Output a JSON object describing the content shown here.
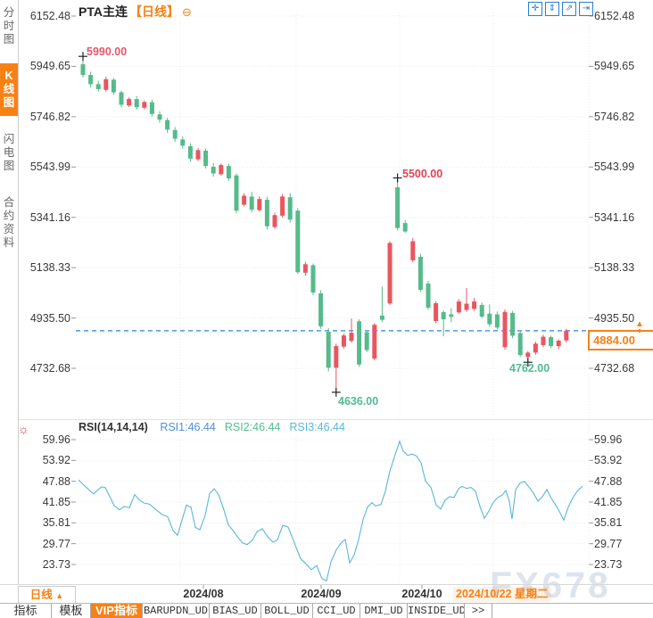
{
  "window": {
    "instrument": "PTA主连",
    "period_tag": "【日线】",
    "collapse_icon_glyph": "⊖"
  },
  "sidebar": {
    "tabs": [
      {
        "label": "分时图",
        "active": false
      },
      {
        "label": "K线图",
        "active": true
      },
      {
        "label": "闪电图",
        "active": false
      },
      {
        "label": "合约资料",
        "active": false
      }
    ],
    "active_bg": "#f78114"
  },
  "top_toolbar": {
    "icons": [
      {
        "name": "crosshair-move-icon",
        "glyph": "✛"
      },
      {
        "name": "y-axis-scale-icon",
        "glyph": "⇕"
      },
      {
        "name": "x-axis-scale-icon",
        "glyph": "⇗"
      },
      {
        "name": "go-to-latest-icon",
        "glyph": "⇥"
      }
    ],
    "color": "#2a7fd4"
  },
  "rsi_panel": {
    "settings_icon_glyph": "☼",
    "label": "RSI(14,14,14)",
    "readouts": [
      {
        "text": "RSI1:46.44",
        "color": "#4f8fdd"
      },
      {
        "text": "RSI2:46.44",
        "color": "#52bd8f"
      },
      {
        "text": "RSI3:46.44",
        "color": "#55b8e0"
      }
    ]
  },
  "x_axis": {
    "period_label": "日线",
    "period_arrow": "▲",
    "months": [
      "2024/08",
      "2024/09",
      "2024/10"
    ],
    "current_date": "2024/10/22 星期二",
    "accent": "#f78114"
  },
  "bottom_toolbar": {
    "items": [
      {
        "label": "指标",
        "active": false,
        "cn": true
      },
      {
        "label": "模板",
        "active": false,
        "cn": true
      },
      {
        "label": "VIP指标",
        "active": true,
        "cn": true
      },
      {
        "label": "BARUPDN_UD",
        "active": false,
        "cn": false
      },
      {
        "label": "BIAS_UD",
        "active": false,
        "cn": false
      },
      {
        "label": "BOLL_UD",
        "active": false,
        "cn": false
      },
      {
        "label": "CCI_UD",
        "active": false,
        "cn": false
      },
      {
        "label": "DMI_UD",
        "active": false,
        "cn": false
      },
      {
        "label": "INSIDE_UD",
        "active": false,
        "cn": false
      },
      {
        "label": ">>",
        "active": false,
        "cn": false
      }
    ]
  },
  "watermark": "FX678",
  "chart_data": [
    {
      "type": "candlestick",
      "title": "PTA主连 日线",
      "ylabel": "price",
      "ylim": [
        4636,
        6152.48
      ],
      "y_ticks": [
        "6152.48",
        "5949.65",
        "5746.82",
        "5543.99",
        "5341.16",
        "5138.33",
        "4935.50",
        "4732.68"
      ],
      "x_tick_labels": [
        "2024/08",
        "2024/09",
        "2024/10"
      ],
      "colors": {
        "up": "#e8565f",
        "down": "#56ba8b",
        "current_line": "#2a82e4"
      },
      "current_price": 4884.0,
      "current_price_label": "4884.00",
      "annotations": [
        {
          "text": "5990.00",
          "price": 5990,
          "color": "#e8566a"
        },
        {
          "text": "5500.00",
          "price": 5500,
          "color": "#e04353"
        },
        {
          "text": "4636.00",
          "price": 4636,
          "color": "#4fbc92"
        },
        {
          "text": "4762.00",
          "price": 4762,
          "color": "#4fbc92"
        }
      ],
      "ohlc": [
        [
          5958,
          5990,
          5905,
          5915
        ],
        [
          5915,
          5928,
          5865,
          5878
        ],
        [
          5878,
          5892,
          5848,
          5858
        ],
        [
          5855,
          5908,
          5848,
          5898
        ],
        [
          5896,
          5902,
          5835,
          5845
        ],
        [
          5845,
          5852,
          5785,
          5795
        ],
        [
          5792,
          5825,
          5786,
          5818
        ],
        [
          5818,
          5830,
          5775,
          5785
        ],
        [
          5783,
          5812,
          5776,
          5806
        ],
        [
          5805,
          5815,
          5748,
          5758
        ],
        [
          5756,
          5768,
          5722,
          5735
        ],
        [
          5733,
          5742,
          5682,
          5695
        ],
        [
          5693,
          5705,
          5645,
          5658
        ],
        [
          5655,
          5668,
          5618,
          5630
        ],
        [
          5628,
          5640,
          5565,
          5578
        ],
        [
          5575,
          5620,
          5568,
          5612
        ],
        [
          5610,
          5618,
          5538,
          5548
        ],
        [
          5545,
          5560,
          5505,
          5518
        ],
        [
          5515,
          5558,
          5508,
          5552
        ],
        [
          5548,
          5558,
          5488,
          5498
        ],
        [
          5510,
          5518,
          5358,
          5368
        ],
        [
          5392,
          5438,
          5385,
          5428
        ],
        [
          5425,
          5445,
          5362,
          5372
        ],
        [
          5370,
          5425,
          5365,
          5415
        ],
        [
          5412,
          5425,
          5292,
          5305
        ],
        [
          5302,
          5360,
          5295,
          5350
        ],
        [
          5348,
          5435,
          5340,
          5425
        ],
        [
          5422,
          5438,
          5320,
          5332
        ],
        [
          5368,
          5378,
          5112,
          5120
        ],
        [
          5118,
          5162,
          5105,
          5152
        ],
        [
          5148,
          5155,
          5028,
          5038
        ],
        [
          5035,
          5048,
          4892,
          4902
        ],
        [
          4880,
          4895,
          4720,
          4735
        ],
        [
          4735,
          4832,
          4636,
          4822
        ],
        [
          4820,
          4872,
          4812,
          4865
        ],
        [
          4843,
          4933,
          4836,
          4876
        ],
        [
          4922,
          4930,
          4738,
          4748
        ],
        [
          4878,
          4886,
          4798,
          4806
        ],
        [
          4772,
          4915,
          4765,
          4908
        ],
        [
          4945,
          5062,
          4918,
          4928
        ],
        [
          4994,
          5245,
          4988,
          5238
        ],
        [
          5462,
          5500,
          5288,
          5298
        ],
        [
          5318,
          5330,
          5278,
          5284
        ],
        [
          5168,
          5258,
          5160,
          5245
        ],
        [
          5182,
          5195,
          5040,
          5049
        ],
        [
          5074,
          5085,
          4968,
          4977
        ],
        [
          4923,
          5002,
          4915,
          4995
        ],
        [
          4959,
          4966,
          4862,
          4930
        ],
        [
          4950,
          4975,
          4918,
          4940
        ],
        [
          4958,
          5012,
          4952,
          5002
        ],
        [
          4968,
          5056,
          4960,
          4993
        ],
        [
          4972,
          5016,
          4964,
          5002
        ],
        [
          4988,
          4998,
          4934,
          4941
        ],
        [
          4953,
          4990,
          4900,
          4910
        ],
        [
          4950,
          4962,
          4890,
          4897
        ],
        [
          4818,
          4970,
          4808,
          4960
        ],
        [
          4956,
          4964,
          4854,
          4864
        ],
        [
          4875,
          4885,
          4778,
          4786
        ],
        [
          4778,
          4802,
          4762,
          4796
        ],
        [
          4796,
          4840,
          4788,
          4832
        ],
        [
          4826,
          4868,
          4818,
          4860
        ],
        [
          4858,
          4865,
          4814,
          4822
        ],
        [
          4822,
          4850,
          4810,
          4844
        ],
        [
          4845,
          4892,
          4836,
          4884
        ]
      ]
    },
    {
      "type": "line",
      "title": "RSI(14,14,14)",
      "series": [
        {
          "name": "RSI1",
          "value": 46.44
        },
        {
          "name": "RSI2",
          "value": 46.44
        },
        {
          "name": "RSI3",
          "value": 46.44
        }
      ],
      "y_ticks": [
        "59.96",
        "53.92",
        "47.88",
        "41.85",
        "35.81",
        "29.77",
        "23.73"
      ],
      "line_color": "#5ab6dc",
      "points": [
        [
          88,
          48.3
        ],
        [
          93,
          47.0
        ],
        [
          98,
          45.8
        ],
        [
          105,
          44.2
        ],
        [
          110,
          45.5
        ],
        [
          114,
          46.3
        ],
        [
          118,
          46.0
        ],
        [
          123,
          43.5
        ],
        [
          128,
          40.8
        ],
        [
          134,
          39.6
        ],
        [
          139,
          40.6
        ],
        [
          145,
          40.2
        ],
        [
          151,
          44.0
        ],
        [
          156,
          42.5
        ],
        [
          161,
          41.6
        ],
        [
          168,
          41.2
        ],
        [
          175,
          39.6
        ],
        [
          182,
          38.2
        ],
        [
          188,
          37.6
        ],
        [
          194,
          33.6
        ],
        [
          199,
          32.2
        ],
        [
          204,
          36.6
        ],
        [
          209,
          41.0
        ],
        [
          214,
          40.4
        ],
        [
          219,
          34.5
        ],
        [
          224,
          33.8
        ],
        [
          230,
          38.0
        ],
        [
          235,
          44.3
        ],
        [
          240,
          45.7
        ],
        [
          245,
          44.0
        ],
        [
          250,
          40.4
        ],
        [
          256,
          35.2
        ],
        [
          261,
          33.7
        ],
        [
          267,
          31.5
        ],
        [
          272,
          30.0
        ],
        [
          277,
          29.5
        ],
        [
          283,
          30.8
        ],
        [
          288,
          33.2
        ],
        [
          294,
          34.1
        ],
        [
          300,
          31.8
        ],
        [
          306,
          30.2
        ],
        [
          311,
          30.9
        ],
        [
          317,
          35.1
        ],
        [
          323,
          34.6
        ],
        [
          330,
          30.0
        ],
        [
          337,
          25.4
        ],
        [
          343,
          23.9
        ],
        [
          349,
          22.2
        ],
        [
          355,
          23.4
        ],
        [
          361,
          19.6
        ],
        [
          366,
          19.0
        ],
        [
          371,
          24.5
        ],
        [
          377,
          28.0
        ],
        [
          382,
          29.9
        ],
        [
          387,
          31.0
        ],
        [
          392,
          24.2
        ],
        [
          397,
          26.5
        ],
        [
          402,
          31.0
        ],
        [
          407,
          36.8
        ],
        [
          412,
          40.4
        ],
        [
          417,
          41.7
        ],
        [
          421,
          40.7
        ],
        [
          427,
          41.2
        ],
        [
          432,
          45.0
        ],
        [
          437,
          50.8
        ],
        [
          442,
          54.8
        ],
        [
          448,
          59.5
        ],
        [
          452,
          56.6
        ],
        [
          457,
          55.4
        ],
        [
          462,
          55.8
        ],
        [
          467,
          55.2
        ],
        [
          472,
          53.2
        ],
        [
          477,
          47.9
        ],
        [
          483,
          46.1
        ],
        [
          489,
          41.0
        ],
        [
          494,
          39.8
        ],
        [
          499,
          42.4
        ],
        [
          504,
          43.4
        ],
        [
          509,
          43.2
        ],
        [
          514,
          45.7
        ],
        [
          518,
          46.4
        ],
        [
          523,
          45.8
        ],
        [
          528,
          46.1
        ],
        [
          533,
          45.0
        ],
        [
          538,
          40.6
        ],
        [
          543,
          37.1
        ],
        [
          548,
          39.2
        ],
        [
          553,
          41.8
        ],
        [
          558,
          43.2
        ],
        [
          563,
          43.9
        ],
        [
          567,
          45.2
        ],
        [
          571,
          42.0
        ],
        [
          574,
          36.9
        ],
        [
          578,
          45.4
        ],
        [
          583,
          47.4
        ],
        [
          588,
          47.8
        ],
        [
          593,
          46.2
        ],
        [
          598,
          44.4
        ],
        [
          603,
          42.1
        ],
        [
          608,
          43.4
        ],
        [
          613,
          45.5
        ],
        [
          618,
          42.9
        ],
        [
          623,
          40.9
        ],
        [
          628,
          38.7
        ],
        [
          632,
          36.6
        ],
        [
          637,
          40.4
        ],
        [
          642,
          43.0
        ],
        [
          647,
          45.0
        ],
        [
          653,
          46.44
        ]
      ]
    }
  ]
}
